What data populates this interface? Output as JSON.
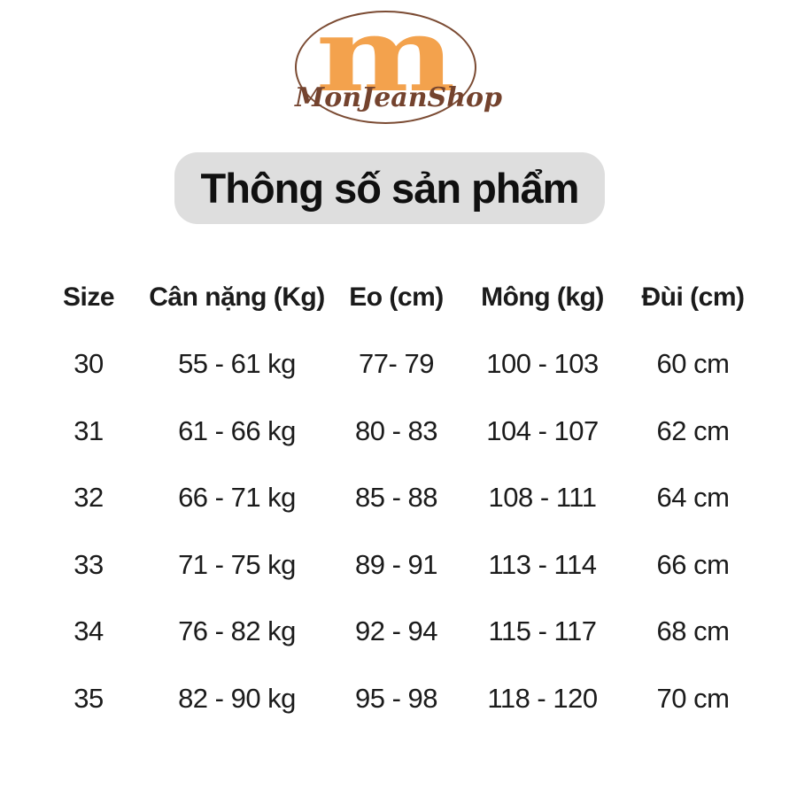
{
  "logo": {
    "monogram": "m",
    "brand": "MonJeanShop"
  },
  "title": "Thông số sản phẩm",
  "table": {
    "headers": [
      "Size",
      "Cân nặng (Kg)",
      "Eo (cm)",
      "Mông (kg)",
      "Đùi (cm)"
    ],
    "rows": [
      [
        "30",
        "55 - 61 kg",
        "77- 79",
        "100 - 103",
        "60 cm"
      ],
      [
        "31",
        "61 - 66 kg",
        "80 - 83",
        "104 - 107",
        "62 cm"
      ],
      [
        "32",
        "66 - 71 kg",
        "85 - 88",
        "108 - 111",
        "64 cm"
      ],
      [
        "33",
        "71 - 75 kg",
        "89 - 91",
        "113 - 114",
        "66 cm"
      ],
      [
        "34",
        "76 - 82 kg",
        "92 - 94",
        "115 - 117",
        "68 cm"
      ],
      [
        "35",
        "82 - 90 kg",
        "95 - 98",
        "118 - 120",
        "70 cm"
      ]
    ]
  },
  "colors": {
    "accent_orange": "#f3a24d",
    "brand_brown": "#74432e",
    "title_background": "#dedede",
    "text": "#1b1b1b"
  }
}
